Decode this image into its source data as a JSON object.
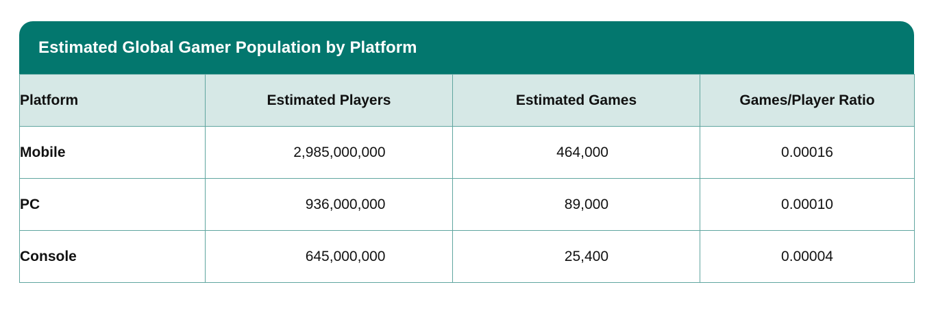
{
  "chart_data": {
    "type": "table",
    "title": "Estimated Global Gamer Population by Platform",
    "columns": [
      "Platform",
      "Estimated Players",
      "Estimated Games",
      "Games/Player Ratio"
    ],
    "rows": [
      {
        "platform": "Mobile",
        "players": "2,985,000,000",
        "games": "464,000",
        "ratio": "0.00016"
      },
      {
        "platform": "PC",
        "players": "936,000,000",
        "games": "89,000",
        "ratio": "0.00010"
      },
      {
        "platform": "Console",
        "players": "645,000,000",
        "games": "25,400",
        "ratio": "0.00004"
      }
    ]
  },
  "colors": {
    "header_bar": "#03776e",
    "column_header_bg": "#d6e8e6",
    "border": "#5fa59f"
  }
}
